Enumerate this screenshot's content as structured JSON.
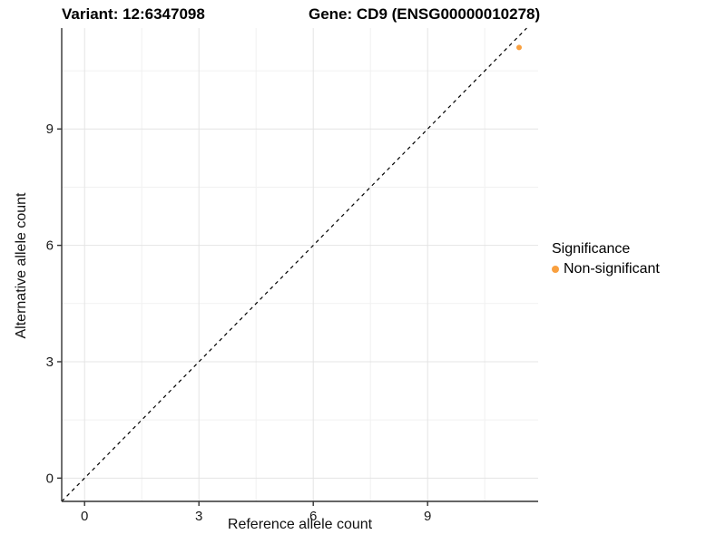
{
  "titles": {
    "variant": "Variant: 12:6347098",
    "gene": "Gene: CD9 (ENSG00000010278)"
  },
  "chart_data": {
    "type": "scatter",
    "xlabel": "Reference allele count",
    "ylabel": "Alternative allele count",
    "x_ticks": [
      0,
      3,
      6,
      9
    ],
    "y_ticks": [
      0,
      3,
      6,
      9
    ],
    "x_minor": [
      1.5,
      4.5,
      7.5,
      10.5
    ],
    "y_minor": [
      1.5,
      4.5,
      7.5,
      10.5
    ],
    "xlim": [
      -0.6,
      11.9
    ],
    "ylim": [
      -0.6,
      11.6
    ],
    "grid": "major+minor",
    "legend_position": "right",
    "reference_line": {
      "type": "identity y=x",
      "style": "dashed",
      "color": "#000000"
    },
    "series": [
      {
        "name": "Non-significant",
        "color": "#F9A03F",
        "points": [
          {
            "x": 11.4,
            "y": 11.1
          }
        ]
      }
    ],
    "legend": {
      "title": "Significance",
      "entries": [
        {
          "label": "Non-significant",
          "color": "#F9A03F"
        }
      ]
    }
  },
  "colors": {
    "axis_line": "#333333",
    "tick_mark": "#333333",
    "tick_label": "#1a1a1a",
    "grid_major": "#E4E4E4",
    "grid_minor": "#F1F1F1",
    "background": "#ffffff"
  }
}
